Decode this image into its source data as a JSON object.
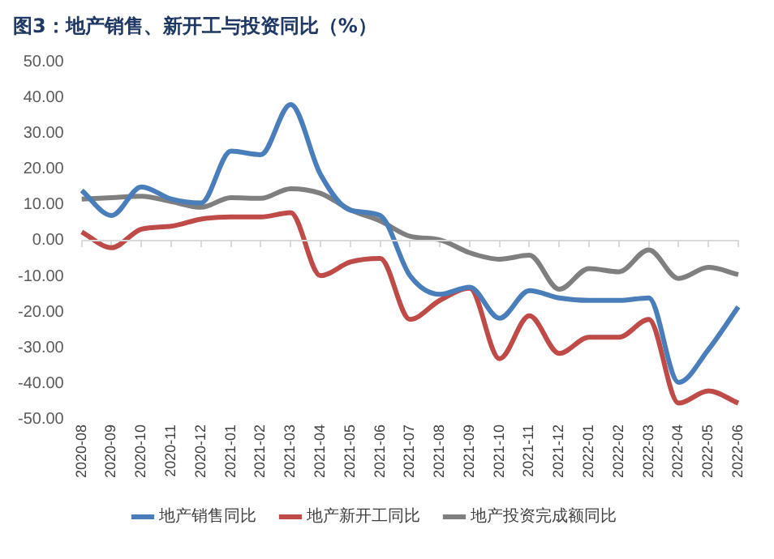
{
  "chart_data": {
    "type": "line",
    "title": "图3：地产销售、新开工与投资同比（%）",
    "categories": [
      "2020-08",
      "2020-09",
      "2020-10",
      "2020-11",
      "2020-12",
      "2021-01",
      "2021-02",
      "2021-03",
      "2021-04",
      "2021-05",
      "2021-06",
      "2021-07",
      "2021-08",
      "2021-09",
      "2021-10",
      "2021-11",
      "2021-12",
      "2022-01",
      "2022-02",
      "2022-03",
      "2022-04",
      "2022-05",
      "2022-06"
    ],
    "series": [
      {
        "name": "地产销售同比",
        "color": "#4a7ebb",
        "values": [
          14,
          7,
          15,
          11.6,
          10.5,
          25,
          24,
          38,
          18.5,
          8.5,
          7,
          -9.8,
          -15,
          -13,
          -21.7,
          -14,
          -16,
          -16.7,
          -16.7,
          -16,
          -39.6,
          -30.4,
          -18.5
        ]
      },
      {
        "name": "地产新开工同比",
        "color": "#be4b48",
        "values": [
          2.4,
          -2,
          3.2,
          4,
          6,
          6.6,
          6.6,
          7.8,
          -9.8,
          -6,
          -5,
          -22,
          -16.7,
          -13.3,
          -33,
          -21,
          -31.5,
          -27,
          -27,
          -22,
          -45.4,
          -42,
          -45.4
        ]
      },
      {
        "name": "地产投资完成额同比",
        "color": "#7f7f7f",
        "values": [
          11.6,
          12,
          12.4,
          10.9,
          9.3,
          12,
          11.8,
          14.5,
          13.2,
          8.6,
          5.5,
          1.2,
          0.2,
          -3.4,
          -5.2,
          -4.1,
          -13.6,
          -7.8,
          -8.7,
          -2.6,
          -10.6,
          -7.5,
          -9.5
        ]
      }
    ],
    "ylim": [
      -50,
      50
    ],
    "yticks": [
      {
        "value": 50,
        "label": "50.00"
      },
      {
        "value": 40,
        "label": "40.00"
      },
      {
        "value": 30,
        "label": "30.00"
      },
      {
        "value": 20,
        "label": "20.00"
      },
      {
        "value": 10,
        "label": "10.00"
      },
      {
        "value": 0,
        "label": "0.00"
      },
      {
        "value": -10,
        "label": "-10.00"
      },
      {
        "value": -20,
        "label": "-20.00"
      },
      {
        "value": -30,
        "label": "-30.00"
      },
      {
        "value": -40,
        "label": "-40.00"
      },
      {
        "value": -50,
        "label": "-50.00"
      }
    ],
    "ref_lines": [
      {
        "axis": "y",
        "value": 0,
        "color": "#d9d9d9"
      }
    ],
    "grid": false,
    "legend": "bottom",
    "marker": "none",
    "line_style": "solid"
  }
}
